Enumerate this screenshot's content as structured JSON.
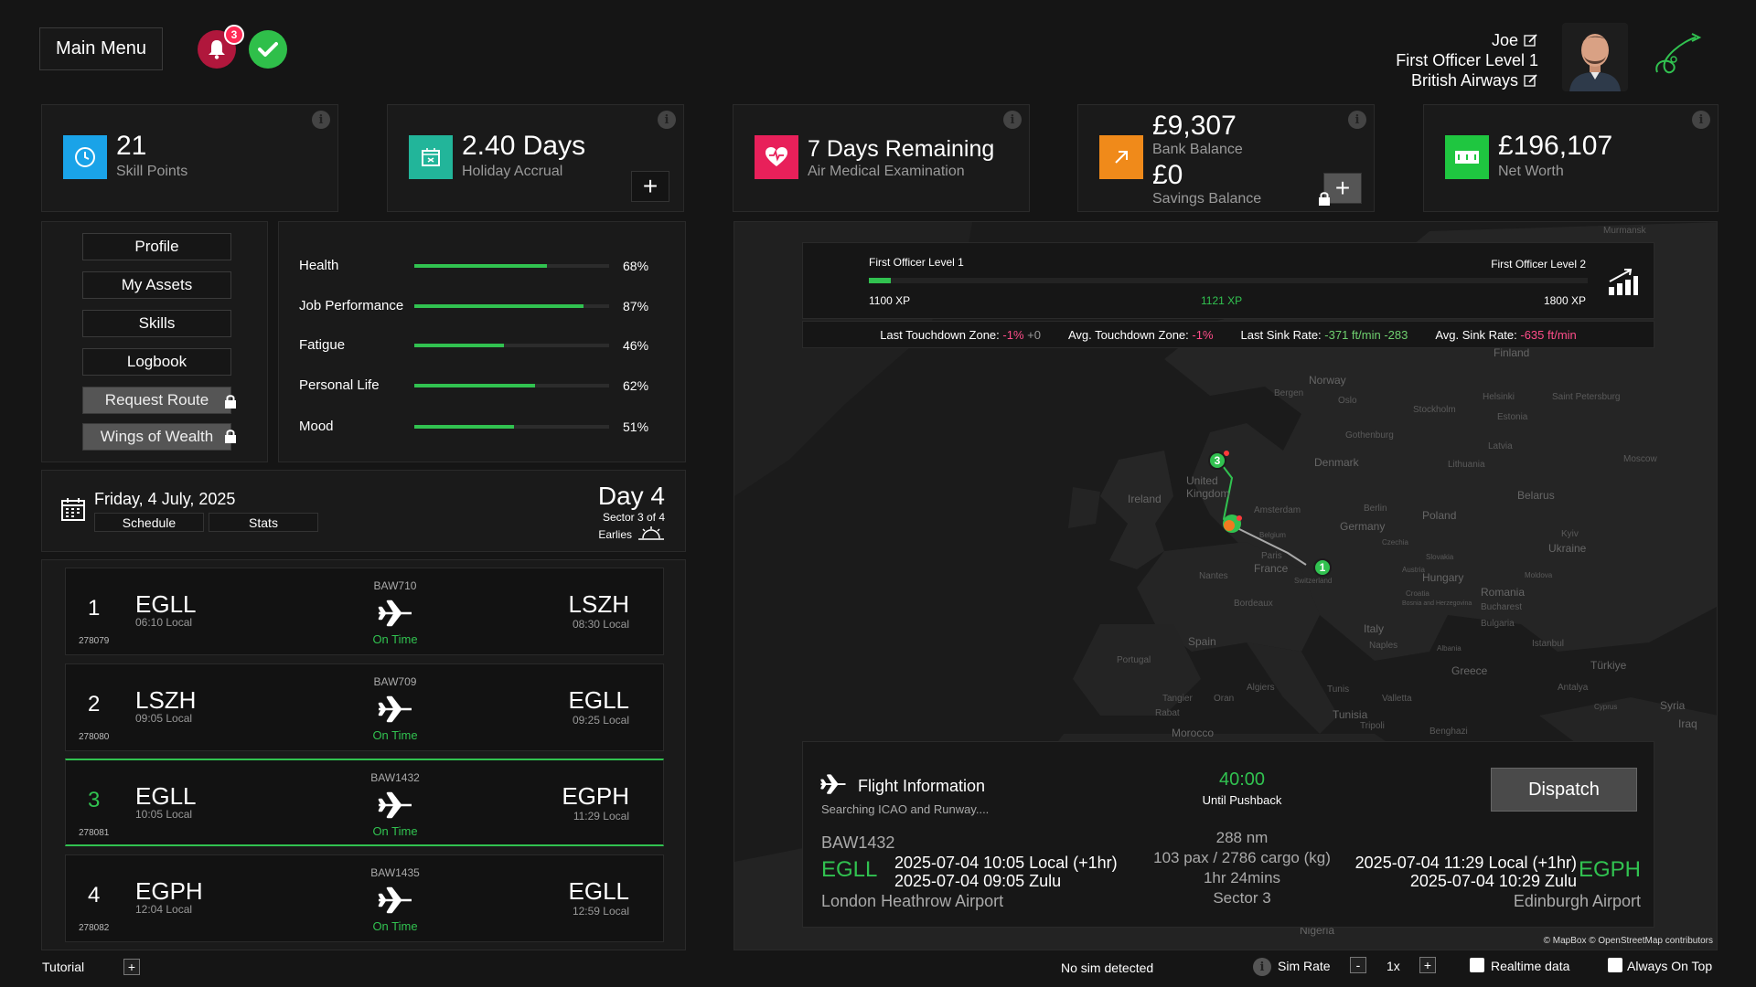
{
  "header": {
    "main_menu_label": "Main Menu",
    "notification_count": "3",
    "user_name": "Joe",
    "rank": "First Officer Level 1",
    "airline": "British Airways"
  },
  "cards": {
    "skill_points": {
      "value": "21",
      "label": "Skill Points"
    },
    "holiday": {
      "value": "2.40 Days",
      "label": "Holiday Accrual"
    },
    "medical": {
      "value": "7 Days Remaining",
      "label": "Air Medical Examination"
    },
    "bank": {
      "value": "£9,307",
      "label": "Bank Balance",
      "savings_value": "£0",
      "savings_label": "Savings Balance"
    },
    "net_worth": {
      "value": "£196,107",
      "label": "Net Worth"
    }
  },
  "menu": {
    "profile": "Profile",
    "assets": "My Assets",
    "skills": "Skills",
    "logbook": "Logbook",
    "request_route": "Request Route",
    "wings": "Wings of Wealth"
  },
  "stats": [
    {
      "label": "Health",
      "value": "68%",
      "fraction": 0.68
    },
    {
      "label": "Job Performance",
      "value": "87%",
      "fraction": 0.87
    },
    {
      "label": "Fatigue",
      "value": "46%",
      "fraction": 0.46
    },
    {
      "label": "Personal Life",
      "value": "62%",
      "fraction": 0.62
    },
    {
      "label": "Mood",
      "value": "51%",
      "fraction": 0.51
    }
  ],
  "date": {
    "date_text": "Friday, 4 July, 2025",
    "schedule_tab": "Schedule",
    "stats_tab": "Stats",
    "day": "Day 4",
    "sector": "Sector 3 of 4",
    "earlies": "Earlies"
  },
  "flights": [
    {
      "num": "1",
      "id": "278079",
      "dep": "EGLL",
      "dep_time": "06:10 Local",
      "callsign": "BAW710",
      "status": "On Time",
      "arr": "LSZH",
      "arr_time": "08:30 Local"
    },
    {
      "num": "2",
      "id": "278080",
      "dep": "LSZH",
      "dep_time": "09:05 Local",
      "callsign": "BAW709",
      "status": "On Time",
      "arr": "EGLL",
      "arr_time": "09:25 Local"
    },
    {
      "num": "3",
      "id": "278081",
      "dep": "EGLL",
      "dep_time": "10:05 Local",
      "callsign": "BAW1432",
      "status": "On Time",
      "arr": "EGPH",
      "arr_time": "11:29 Local"
    },
    {
      "num": "4",
      "id": "278082",
      "dep": "EGPH",
      "dep_time": "12:04 Local",
      "callsign": "BAW1435",
      "status": "On Time",
      "arr": "EGLL",
      "arr_time": "12:59 Local"
    }
  ],
  "xp": {
    "current_level": "First Officer Level 1",
    "next_level": "First Officer Level 2",
    "min_xp": "1100 XP",
    "current_xp": "1121 XP",
    "max_xp": "1800 XP",
    "progress_fraction": 0.03
  },
  "metrics": {
    "ltz_label": "Last Touchdown Zone:",
    "ltz_value": "-1%",
    "ltz_delta": "+0",
    "atz_label": "Avg. Touchdown Zone:",
    "atz_value": "-1%",
    "lsr_label": "Last Sink Rate:",
    "lsr_value": "-371 ft/min",
    "lsr_delta": "-283",
    "asr_label": "Avg. Sink Rate:",
    "asr_value": "-635 ft/min"
  },
  "map": {
    "labels": [
      "Murmansk",
      "Finland",
      "Norway",
      "Bergen",
      "Oslo",
      "Stockholm",
      "Helsinki",
      "Saint Petersburg",
      "Estonia",
      "Latvia",
      "Lithuania",
      "Gothenburg",
      "Denmark",
      "Moscow",
      "Belarus",
      "Ireland",
      "United Kingdom",
      "Amsterdam",
      "Berlin",
      "Poland",
      "Germany",
      "Belgium",
      "Czechia",
      "Kyiv",
      "Ukraine",
      "Paris",
      "France",
      "Nantes",
      "Slovakia",
      "Austria",
      "Hungary",
      "Moldova",
      "Switzerland",
      "Croatia",
      "Bosnia and Herzegovina",
      "Romania",
      "Bucharest",
      "Bordeaux",
      "Bulgaria",
      "Italy",
      "Spain",
      "Naples",
      "Albania",
      "Istanbul",
      "Portugal",
      "Greece",
      "Türkiye",
      "Algiers",
      "Tunis",
      "Valletta",
      "Antalya",
      "Tangier",
      "Oran",
      "Rabat",
      "Tunisia",
      "Tripoli",
      "Cyprus",
      "Syria",
      "Morocco",
      "Benghazi",
      "Iraq",
      "Nigeria"
    ],
    "markers": [
      "1",
      "3"
    ],
    "attribution": "© MapBox © OpenStreetMap contributors"
  },
  "flight_info": {
    "title": "Flight Information",
    "searching": "Searching ICAO and Runway....",
    "countdown": "40:00",
    "countdown_label": "Until Pushback",
    "dispatch_label": "Dispatch",
    "callsign": "BAW1432",
    "dep_icao": "EGLL",
    "dep_local": "2025-07-04 10:05 Local (+1hr)",
    "dep_zulu": "2025-07-04 09:05 Zulu",
    "dep_name": "London Heathrow Airport",
    "distance": "288 nm",
    "load": "103 pax / 2786 cargo (kg)",
    "duration": "1hr 24mins",
    "sector": "Sector 3",
    "arr_icao": "EGPH",
    "arr_local": "2025-07-04 11:29 Local (+1hr)",
    "arr_zulu": "2025-07-04 10:29 Zulu",
    "arr_name": "Edinburgh Airport"
  },
  "footer": {
    "tutorial": "Tutorial",
    "sim_status": "No sim detected",
    "sim_rate_label": "Sim Rate",
    "sim_rate_value": "1x",
    "realtime_label": "Realtime data",
    "always_on_top_label": "Always On Top"
  },
  "colors": {
    "accent_green": "#31c250",
    "negative": "#ff4d8a",
    "skill_icon": "#1aa3e8",
    "holiday_icon": "#22b59a",
    "medical_icon": "#e8205a",
    "bank_icon": "#f08a1a",
    "networth_icon": "#1fc640"
  }
}
